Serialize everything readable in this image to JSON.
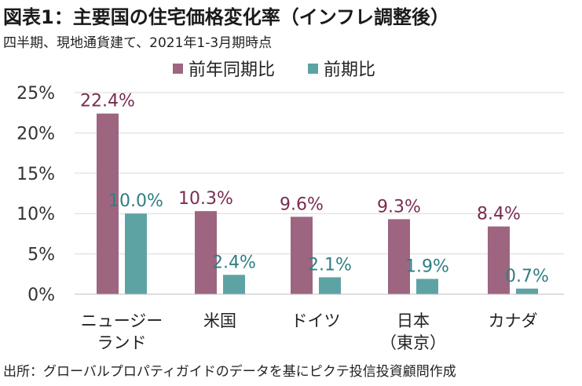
{
  "title": "図表1：主要国の住宅価格変化率（インフレ調整後）",
  "subtitle": "四半期、現地通貨建て、2021年1-3月期時点",
  "source": "出所：グローバルプロパティガイドのデータを基にピクテ投信投資顧問作成",
  "colors": {
    "series1": "#9e6580",
    "series2": "#5ea3a4",
    "label1": "#7a2d52",
    "label2": "#2f7f82",
    "grid": "#d9d9d9"
  },
  "chart_data": {
    "type": "bar",
    "categories": [
      [
        "ニュージー",
        "ランド"
      ],
      [
        "米国"
      ],
      [
        "ドイツ"
      ],
      [
        "日本",
        "（東京）"
      ],
      [
        "カナダ"
      ]
    ],
    "series": [
      {
        "name": "前年同期比",
        "values": [
          22.4,
          10.3,
          9.6,
          9.3,
          8.4
        ],
        "labels": [
          "22.4%",
          "10.3%",
          "9.6%",
          "9.3%",
          "8.4%"
        ]
      },
      {
        "name": "前期比",
        "values": [
          10.0,
          2.4,
          2.1,
          1.9,
          0.7
        ],
        "labels": [
          "10.0%",
          "2.4%",
          "2.1%",
          "1.9%",
          "0.7%"
        ]
      }
    ],
    "ylim": [
      0,
      25
    ],
    "yticks": [
      0,
      5,
      10,
      15,
      20,
      25
    ],
    "ytick_labels": [
      "0%",
      "5%",
      "10%",
      "15%",
      "20%",
      "25%"
    ],
    "grid": true,
    "legend_position": "top-center"
  }
}
